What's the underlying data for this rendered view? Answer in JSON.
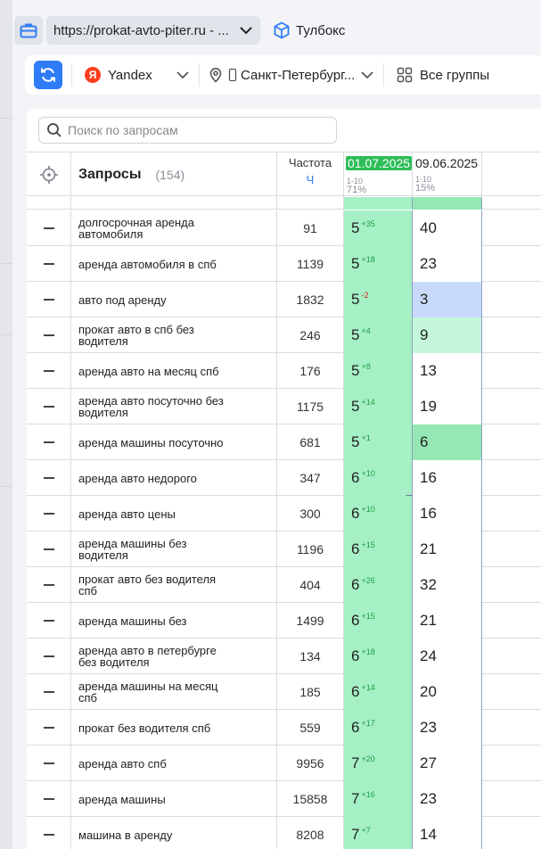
{
  "browser": {
    "url": "https://prokat-avto-piter.ru - ...",
    "toolbox_label": "Тулбокс"
  },
  "filters": {
    "engine": "Yandex",
    "region": "Санкт-Петербург...",
    "groups": "Все группы"
  },
  "search": {
    "placeholder": "Поиск по запросам"
  },
  "table": {
    "query_header": "Запросы",
    "query_count": "(154)",
    "freq_header": "Частота",
    "freq_unit": "Ч",
    "dates": [
      {
        "date": "01.07.2025",
        "range": "1-10",
        "percent": "71%"
      },
      {
        "date": "09.06.2025",
        "range": "1-10",
        "percent": "15%"
      }
    ],
    "rows": [
      {
        "query_lines": [
          "долгосрочная аренда",
          "автомобиля"
        ],
        "freq": "91",
        "pos1": "5",
        "delta1": "+35",
        "pos2": "40"
      },
      {
        "query_lines": [
          "аренда автомобиля в спб"
        ],
        "freq": "1139",
        "pos1": "5",
        "delta1": "+18",
        "pos2": "23"
      },
      {
        "query_lines": [
          "авто под аренду"
        ],
        "freq": "1832",
        "pos1": "5",
        "delta1": "-2",
        "pos2": "3"
      },
      {
        "query_lines": [
          "прокат авто в спб без",
          "водителя"
        ],
        "freq": "246",
        "pos1": "5",
        "delta1": "+4",
        "pos2": "9"
      },
      {
        "query_lines": [
          "аренда авто на месяц спб"
        ],
        "freq": "176",
        "pos1": "5",
        "delta1": "+8",
        "pos2": "13"
      },
      {
        "query_lines": [
          "аренда авто посуточно без",
          "водителя"
        ],
        "freq": "1175",
        "pos1": "5",
        "delta1": "+14",
        "pos2": "19"
      },
      {
        "query_lines": [
          "аренда машины посуточно"
        ],
        "freq": "681",
        "pos1": "5",
        "delta1": "+1",
        "pos2": "6"
      },
      {
        "query_lines": [
          "аренда авто недорого"
        ],
        "freq": "347",
        "pos1": "6",
        "delta1": "+10",
        "pos2": "16"
      },
      {
        "query_lines": [
          "аренда авто цены"
        ],
        "freq": "300",
        "pos1": "6",
        "delta1": "+10",
        "pos2": "16"
      },
      {
        "query_lines": [
          "аренда машины без",
          "водителя"
        ],
        "freq": "1196",
        "pos1": "6",
        "delta1": "+15",
        "pos2": "21"
      },
      {
        "query_lines": [
          "прокат авто без водителя",
          "спб"
        ],
        "freq": "404",
        "pos1": "6",
        "delta1": "+26",
        "pos2": "32"
      },
      {
        "query_lines": [
          "аренда машины без"
        ],
        "freq": "1499",
        "pos1": "6",
        "delta1": "+15",
        "pos2": "21"
      },
      {
        "query_lines": [
          "аренда авто в петербурге",
          "без водителя"
        ],
        "freq": "134",
        "pos1": "6",
        "delta1": "+18",
        "pos2": "24"
      },
      {
        "query_lines": [
          "аренда машины на месяц",
          "спб"
        ],
        "freq": "185",
        "pos1": "6",
        "delta1": "+14",
        "pos2": "20"
      },
      {
        "query_lines": [
          "прокат без водителя спб"
        ],
        "freq": "559",
        "pos1": "6",
        "delta1": "+17",
        "pos2": "23"
      },
      {
        "query_lines": [
          "аренда авто спб"
        ],
        "freq": "9956",
        "pos1": "7",
        "delta1": "+20",
        "pos2": "27"
      },
      {
        "query_lines": [
          "аренда машины"
        ],
        "freq": "15858",
        "pos1": "7",
        "delta1": "+16",
        "pos2": "23"
      },
      {
        "query_lines": [
          "машина в аренду"
        ],
        "freq": "8208",
        "pos1": "7",
        "delta1": "+7",
        "pos2": "14"
      }
    ]
  },
  "colors": {
    "accent": "#2f7cf6",
    "active_date": "#2ebd58",
    "top_position": "#a5f0c5",
    "prev_top_position": "#95e8b4",
    "prev_light_green": "#c4f7d9",
    "prev_blue": "#c8dafb",
    "delta_up": "#1e9e48",
    "delta_down": "#e02020"
  },
  "icons": {
    "briefcase": "briefcase-icon",
    "cube": "cube-icon",
    "refresh": "refresh-icon",
    "location": "location-pin-icon",
    "grid": "grid-icon",
    "search": "search-icon",
    "target": "target-icon"
  }
}
